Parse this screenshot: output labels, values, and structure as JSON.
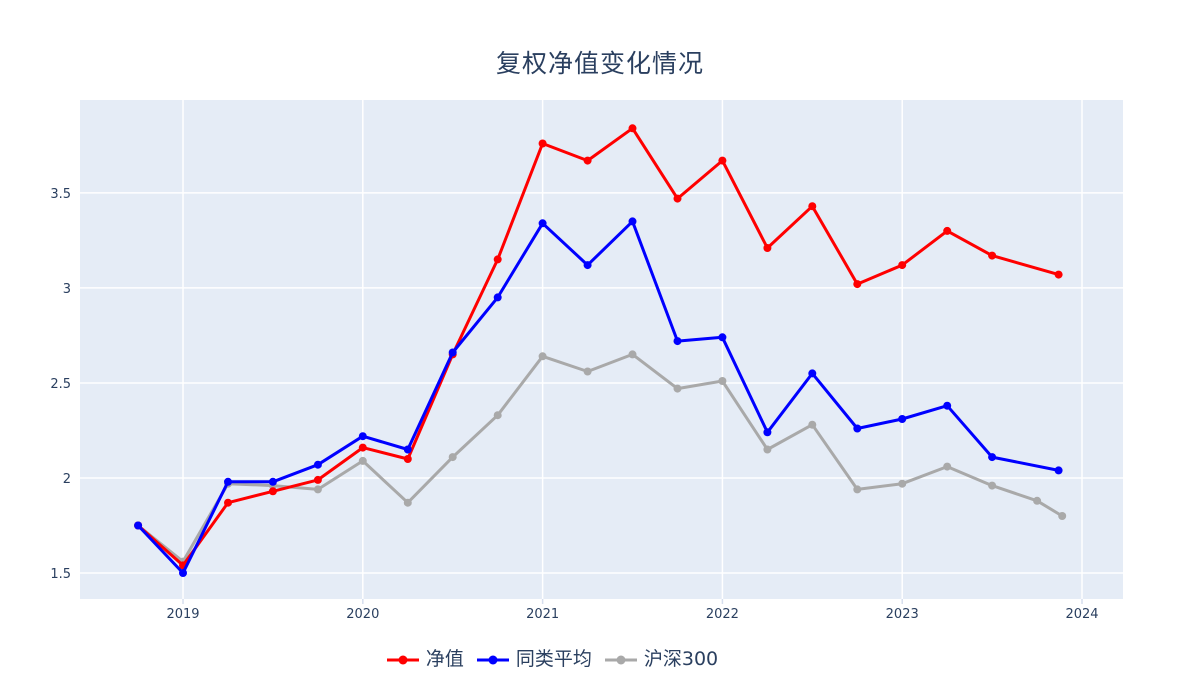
{
  "chart_data": {
    "type": "line",
    "title": "复权净值变化情况",
    "xlabel": "",
    "ylabel": "",
    "grid": true,
    "legend_position": "bottom-center",
    "plot_bgcolor": "#e5ecf6",
    "paper_bgcolor": "#ffffff",
    "gridcolor": "#ffffff",
    "tick_color": "#2a3f5f",
    "tick_mark_color": "#d6deee",
    "x_range": [
      2018.427,
      2024.228
    ],
    "y_range": [
      1.363,
      3.989
    ],
    "x_ticks": {
      "values": [
        2019,
        2020,
        2021,
        2022,
        2023,
        2024
      ],
      "labels": [
        "2019",
        "2020",
        "2021",
        "2022",
        "2023",
        "2024"
      ]
    },
    "y_ticks": {
      "values": [
        1.5,
        2,
        2.5,
        3,
        3.5
      ],
      "labels": [
        "1.5",
        "2",
        "2.5",
        "3",
        "3.5"
      ]
    },
    "series": [
      {
        "name": "净值",
        "key": "nav",
        "color": "#ff0000",
        "x": [
          2018.75,
          2019.0,
          2019.25,
          2019.5,
          2019.75,
          2020.0,
          2020.25,
          2020.5,
          2020.75,
          2021.0,
          2021.25,
          2021.5,
          2021.75,
          2022.0,
          2022.25,
          2022.5,
          2022.75,
          2023.0,
          2023.25,
          2023.5,
          2023.87
        ],
        "values": [
          1.75,
          1.54,
          1.87,
          1.93,
          1.99,
          2.16,
          2.1,
          2.65,
          3.15,
          3.76,
          3.67,
          3.84,
          3.47,
          3.67,
          3.21,
          3.43,
          3.02,
          3.12,
          3.3,
          3.17,
          3.07
        ]
      },
      {
        "name": "同类平均",
        "key": "peer-average",
        "color": "#0000ff",
        "x": [
          2018.75,
          2019.0,
          2019.25,
          2019.5,
          2019.75,
          2020.0,
          2020.25,
          2020.5,
          2020.75,
          2021.0,
          2021.25,
          2021.5,
          2021.75,
          2022.0,
          2022.25,
          2022.5,
          2022.75,
          2023.0,
          2023.25,
          2023.5,
          2023.87
        ],
        "values": [
          1.75,
          1.5,
          1.98,
          1.98,
          2.07,
          2.22,
          2.15,
          2.66,
          2.95,
          3.34,
          3.12,
          3.35,
          2.72,
          2.74,
          2.24,
          2.55,
          2.26,
          2.31,
          2.38,
          2.11,
          2.04
        ]
      },
      {
        "name": "沪深300",
        "key": "csi300",
        "color": "#a9a9a9",
        "x": [
          2018.75,
          2019.0,
          2019.25,
          2019.5,
          2019.75,
          2020.0,
          2020.25,
          2020.5,
          2020.75,
          2021.0,
          2021.25,
          2021.5,
          2021.75,
          2022.0,
          2022.25,
          2022.5,
          2022.75,
          2023.0,
          2023.25,
          2023.5,
          2023.75,
          2023.89
        ],
        "values": [
          1.75,
          1.56,
          1.97,
          1.96,
          1.94,
          2.09,
          1.87,
          2.11,
          2.33,
          2.64,
          2.56,
          2.65,
          2.47,
          2.51,
          2.15,
          2.28,
          1.94,
          1.97,
          2.06,
          1.96,
          1.88,
          1.8
        ]
      }
    ]
  }
}
